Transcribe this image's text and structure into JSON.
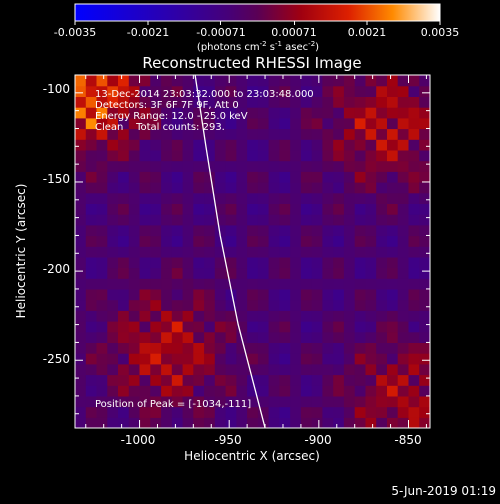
{
  "chart_data": {
    "type": "heatmap",
    "title": "Reconstructed RHESSI Image",
    "xlabel": "Heliocentric X (arcsec)",
    "ylabel": "Heliocentric Y (arcsec)",
    "xlim": [
      -1036,
      -838
    ],
    "ylim": [
      -288,
      -90
    ],
    "x_ticks": [
      -1000,
      -950,
      -900,
      -850
    ],
    "y_ticks": [
      -250,
      -200,
      -150,
      -100
    ],
    "colorbar": {
      "ticks": [
        -0.0035,
        -0.0021,
        -0.00071,
        0.00071,
        0.0021,
        0.0035
      ],
      "tick_labels": [
        "-0.0035",
        "-0.0021",
        "-0.00071",
        "0.00071",
        "0.0021",
        "0.0035"
      ],
      "range": [
        -0.0035,
        0.0035
      ],
      "unit_parts": [
        "(photons cm",
        "-2",
        " s",
        "-1",
        " asec",
        "-2",
        ")"
      ]
    },
    "annotations": [
      "13-Dec-2014 23:03:32.000 to 23:03:48.000",
      "Detectors: 3F 6F 7F 9F, Att 0",
      "Energy Range: 12.0 - 25.0 keV",
      "Clean    Total counts: 293."
    ],
    "peak_label": "Position of Peak = [-1034,-111]",
    "peak": [
      -1034,
      -111
    ],
    "sources": [
      {
        "x": -1030,
        "y": -100,
        "value": 0.0035
      },
      {
        "x": -862,
        "y": -118,
        "value": 0.0021
      },
      {
        "x": -985,
        "y": -245,
        "value": 0.0021
      },
      {
        "x": -852,
        "y": -270,
        "value": 0.0018
      }
    ],
    "limb_line": [
      [
        -969,
        -90
      ],
      [
        -963,
        -130
      ],
      [
        -955,
        -180
      ],
      [
        -945,
        -230
      ],
      [
        -930,
        -288
      ]
    ],
    "grid": false
  },
  "footer": {
    "timestamp": "5-Jun-2019 01:19"
  },
  "colors": {
    "background": "#000000",
    "limb": "#ffffff",
    "text": "#ffffff"
  }
}
